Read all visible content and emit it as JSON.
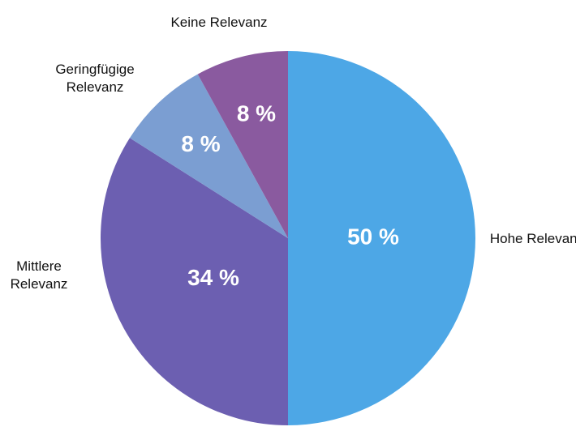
{
  "chart_data": {
    "type": "pie",
    "categories": [
      "Hohe Relevanz",
      "Mittlere Relevanz",
      "Geringfügige Relevanz",
      "Keine Relevanz"
    ],
    "values": [
      50,
      34,
      8,
      8
    ],
    "value_labels": [
      "50 %",
      "34 %",
      "8 %",
      "8 %"
    ],
    "colors": [
      "#4da7e6",
      "#6c5fb1",
      "#7b9ed2",
      "#8a5a9f"
    ]
  }
}
